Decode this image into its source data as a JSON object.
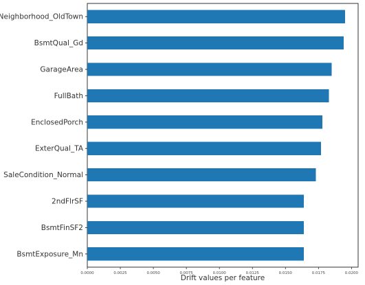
{
  "chart_data": {
    "type": "bar",
    "orientation": "horizontal",
    "categories": [
      "Neighborhood_OldTown",
      "BsmtQual_Gd",
      "GarageArea",
      "FullBath",
      "EnclosedPorch",
      "ExterQual_TA",
      "SaleCondition_Normal",
      "2ndFlrSF",
      "BsmtFinSF2",
      "BsmtExposure_Mn"
    ],
    "values": [
      0.0195,
      0.0194,
      0.0185,
      0.0183,
      0.0178,
      0.0177,
      0.0173,
      0.0164,
      0.0164,
      0.0164
    ],
    "xticks": [
      0.0,
      0.0025,
      0.005,
      0.0075,
      0.01,
      0.0125,
      0.015,
      0.0175,
      0.02
    ],
    "xtick_labels": [
      "0.0000",
      "0.0025",
      "0.0050",
      "0.0075",
      "0.0100",
      "0.0125",
      "0.0150",
      "0.0175",
      "0.0200"
    ],
    "xlim": [
      0,
      0.0205
    ],
    "xlabel": "Drift values per feature",
    "ylabel": "",
    "title": "",
    "bar_color": "#1f77b4",
    "grid": false,
    "legend": "none"
  }
}
